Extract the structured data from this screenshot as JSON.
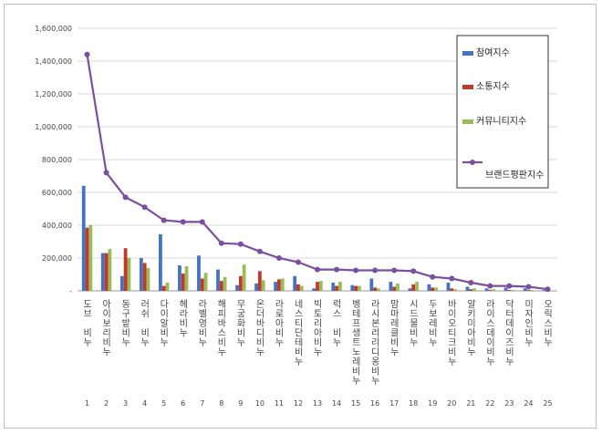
{
  "chart_data": {
    "type": "bar",
    "categories": [
      "도브 비누",
      "아이보리비누",
      "동구밭비누",
      "러쉬 비누",
      "다이알비누",
      "헤라비누",
      "라벨영비누",
      "해피바스비누",
      "무궁화비누",
      "온더바디비누",
      "라로아비누",
      "네스티단테비누",
      "빅토리아비누",
      "럭스 비누",
      "벵테프생트노레비누",
      "라시본리리디옹비누",
      "맘마레클비누",
      "시드물비누",
      "두보레비누",
      "바이오티크비누",
      "알키미아비누",
      "라이스데이비누",
      "닥터데이즈비누",
      "미자인비누",
      "오릭스비누"
    ],
    "index_labels": [
      "1",
      "2",
      "3",
      "4",
      "5",
      "6",
      "7",
      "8",
      "9",
      "10",
      "11",
      "12",
      "13",
      "14",
      "15",
      "16",
      "17",
      "18",
      "19",
      "20",
      "21",
      "22",
      "23",
      "24",
      "25"
    ],
    "series": [
      {
        "name": "참여지수",
        "color": "#4472c4",
        "values": [
          640000,
          230000,
          90000,
          200000,
          345000,
          155000,
          215000,
          130000,
          35000,
          45000,
          55000,
          90000,
          15000,
          50000,
          35000,
          75000,
          55000,
          15000,
          40000,
          50000,
          25000,
          15000,
          20000,
          15000,
          5000
        ]
      },
      {
        "name": "소통지수",
        "color": "#c0392b",
        "values": [
          385000,
          230000,
          260000,
          170000,
          30000,
          105000,
          75000,
          60000,
          90000,
          120000,
          70000,
          40000,
          55000,
          30000,
          30000,
          20000,
          25000,
          40000,
          20000,
          15000,
          10000,
          5000,
          5000,
          5000,
          3000
        ]
      },
      {
        "name": "커뮤니티지수",
        "color": "#9bbb59",
        "values": [
          400000,
          255000,
          200000,
          140000,
          50000,
          150000,
          110000,
          85000,
          160000,
          65000,
          75000,
          30000,
          60000,
          55000,
          30000,
          15000,
          45000,
          55000,
          20000,
          10000,
          15000,
          10000,
          5000,
          5000,
          2000
        ]
      },
      {
        "name": "브랜드평판지수",
        "color": "#7b4fa0",
        "type": "line",
        "values": [
          1440000,
          720000,
          570000,
          510000,
          430000,
          420000,
          420000,
          290000,
          285000,
          240000,
          200000,
          175000,
          130000,
          130000,
          125000,
          125000,
          125000,
          120000,
          85000,
          75000,
          50000,
          30000,
          30000,
          25000,
          10000
        ]
      }
    ],
    "y_ticks": [
      "-",
      "200,000",
      "400,000",
      "600,000",
      "800,000",
      "1,000,000",
      "1,200,000",
      "1,400,000",
      "1,600,000"
    ],
    "ylim": [
      0,
      1600000
    ],
    "grid": true,
    "legend_position": "right"
  }
}
